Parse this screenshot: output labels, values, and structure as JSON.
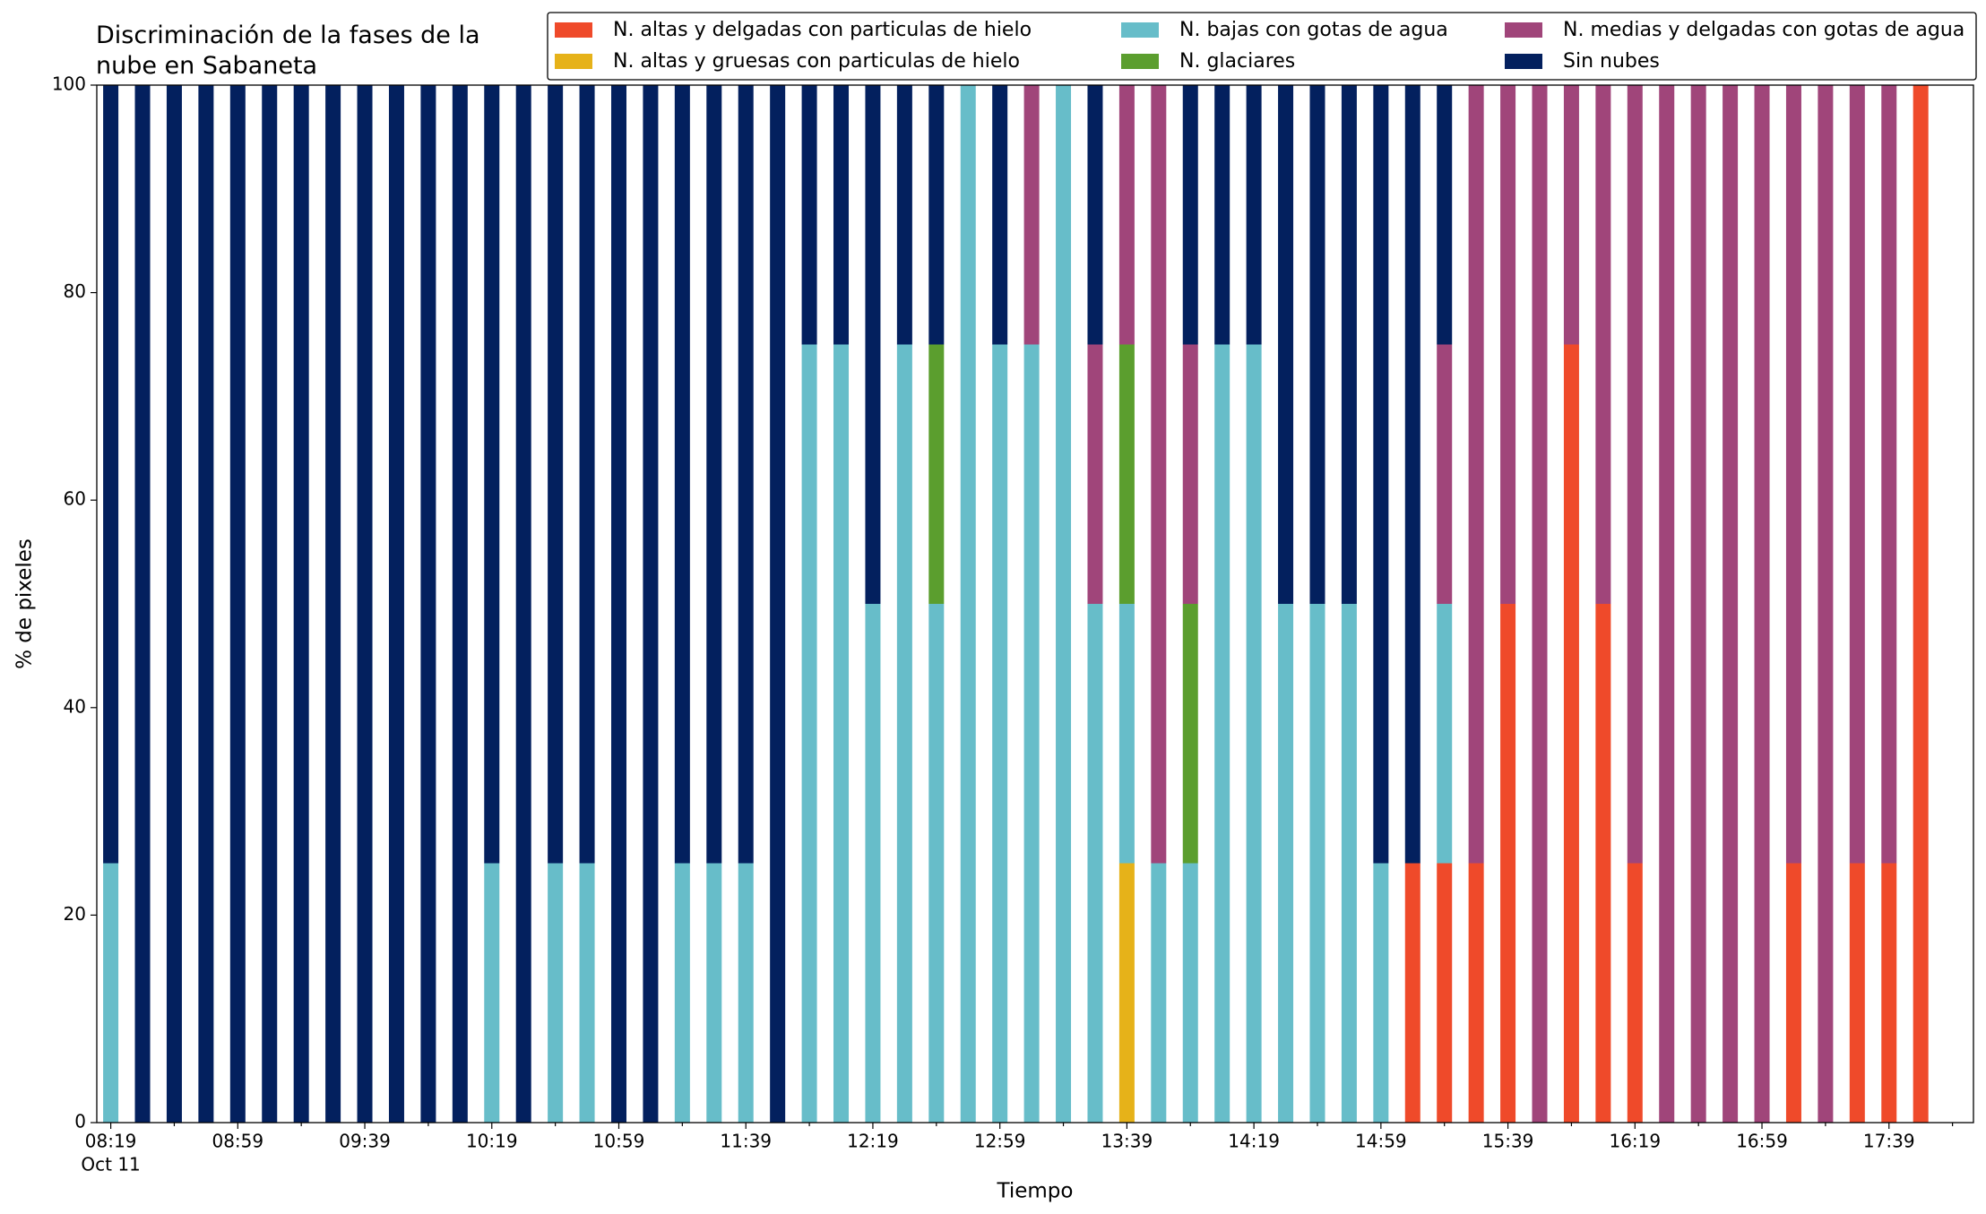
{
  "chart_data": {
    "type": "stacked_bar",
    "title": "Discriminación de la fases de la\nnube en Sabaneta",
    "x_label": "Tiempo",
    "y_label": "% de pixeles",
    "date_label": "Oct 11",
    "categories": [
      "08:19",
      null,
      null,
      null,
      "08:59",
      null,
      null,
      null,
      "09:39",
      null,
      null,
      null,
      "10:19",
      null,
      null,
      null,
      "10:59",
      null,
      null,
      null,
      "11:39",
      null,
      null,
      null,
      "12:19",
      null,
      null,
      null,
      "12:59",
      null,
      null,
      null,
      "13:39",
      null,
      null,
      null,
      "14:19",
      null,
      null,
      null,
      "14:59",
      null,
      null,
      null,
      "15:39",
      null,
      null,
      null,
      "16:19",
      null,
      null,
      null,
      "16:59",
      null,
      null,
      null,
      "17:39",
      null
    ],
    "ylim": [
      0,
      100
    ],
    "yticks": [
      0,
      20,
      40,
      60,
      80,
      100
    ],
    "series": [
      {
        "name": "N. altas y delgadas con particulas de hielo",
        "color": "#ef4a2a",
        "values": [
          0,
          0,
          0,
          0,
          0,
          0,
          0,
          0,
          0,
          0,
          0,
          0,
          0,
          0,
          0,
          0,
          0,
          0,
          0,
          0,
          0,
          0,
          0,
          0,
          0,
          0,
          0,
          0,
          0,
          0,
          0,
          0,
          0,
          0,
          0,
          0,
          0,
          0,
          0,
          0,
          0,
          25,
          25,
          25,
          50,
          0,
          75,
          50,
          25,
          0,
          0,
          0,
          0,
          25,
          0,
          25,
          25,
          100
        ]
      },
      {
        "name": "N. altas y gruesas con particulas de hielo",
        "color": "#e6b219",
        "values": [
          0,
          0,
          0,
          0,
          0,
          0,
          0,
          0,
          0,
          0,
          0,
          0,
          0,
          0,
          0,
          0,
          0,
          0,
          0,
          0,
          0,
          0,
          0,
          0,
          0,
          0,
          0,
          0,
          0,
          0,
          0,
          0,
          25,
          0,
          0,
          0,
          0,
          0,
          0,
          0,
          0,
          0,
          0,
          0,
          0,
          0,
          0,
          0,
          0,
          0,
          0,
          0,
          0,
          0,
          0,
          0,
          0,
          0
        ]
      },
      {
        "name": "N. bajas con gotas de agua",
        "color": "#67bdc9",
        "values": [
          25,
          0,
          0,
          0,
          0,
          0,
          0,
          0,
          0,
          0,
          0,
          0,
          25,
          0,
          25,
          25,
          0,
          0,
          25,
          25,
          25,
          0,
          75,
          75,
          50,
          75,
          50,
          100,
          75,
          75,
          100,
          50,
          25,
          25,
          25,
          75,
          75,
          50,
          50,
          50,
          25,
          0,
          25,
          0,
          0,
          0,
          0,
          0,
          0,
          0,
          0,
          0,
          0,
          0,
          0,
          0,
          0,
          0
        ]
      },
      {
        "name": "N. glaciares",
        "color": "#5b9e2e",
        "values": [
          0,
          0,
          0,
          0,
          0,
          0,
          0,
          0,
          0,
          0,
          0,
          0,
          0,
          0,
          0,
          0,
          0,
          0,
          0,
          0,
          0,
          0,
          0,
          0,
          0,
          0,
          25,
          0,
          0,
          0,
          0,
          0,
          25,
          0,
          25,
          0,
          0,
          0,
          0,
          0,
          0,
          0,
          0,
          0,
          0,
          0,
          0,
          0,
          0,
          0,
          0,
          0,
          0,
          0,
          0,
          0,
          0,
          0
        ]
      },
      {
        "name": "N. medias y delgadas con gotas de agua",
        "color": "#a0457a",
        "values": [
          0,
          0,
          0,
          0,
          0,
          0,
          0,
          0,
          0,
          0,
          0,
          0,
          0,
          0,
          0,
          0,
          0,
          0,
          0,
          0,
          0,
          0,
          0,
          0,
          0,
          0,
          0,
          0,
          0,
          25,
          0,
          25,
          25,
          75,
          25,
          0,
          0,
          0,
          0,
          0,
          0,
          0,
          25,
          75,
          50,
          100,
          25,
          50,
          75,
          100,
          100,
          100,
          100,
          75,
          100,
          75,
          75,
          0
        ]
      },
      {
        "name": "Sin nubes",
        "color": "#03205e",
        "values": [
          75,
          100,
          100,
          100,
          100,
          100,
          100,
          100,
          100,
          100,
          100,
          100,
          75,
          100,
          75,
          75,
          100,
          100,
          75,
          75,
          75,
          100,
          25,
          25,
          50,
          25,
          25,
          0,
          25,
          0,
          0,
          25,
          0,
          0,
          25,
          25,
          25,
          50,
          50,
          50,
          75,
          75,
          25,
          0,
          0,
          0,
          0,
          0,
          0,
          0,
          0,
          0,
          0,
          0,
          0,
          0,
          0,
          0
        ]
      }
    ]
  }
}
